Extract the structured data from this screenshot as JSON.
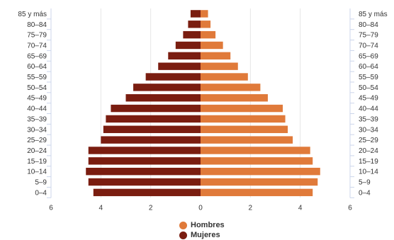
{
  "chart_data": {
    "type": "bar",
    "orientation": "horizontal",
    "layout": "population-pyramid",
    "categories": [
      "85 y más",
      "80–84",
      "75–79",
      "70–74",
      "65–69",
      "60–64",
      "55–59",
      "50–54",
      "45–49",
      "40–44",
      "35–39",
      "30–34",
      "25–29",
      "20–24",
      "15–19",
      "10–14",
      "5–9",
      "0–4"
    ],
    "series": [
      {
        "name": "Hombres",
        "side": "right",
        "color": "#E07A3A",
        "values": [
          0.3,
          0.4,
          0.6,
          0.9,
          1.2,
          1.5,
          1.9,
          2.4,
          2.7,
          3.3,
          3.4,
          3.5,
          3.7,
          4.4,
          4.5,
          4.8,
          4.7,
          4.5
        ]
      },
      {
        "name": "Mujeres",
        "side": "left",
        "color": "#7A1D10",
        "values": [
          0.4,
          0.5,
          0.7,
          1.0,
          1.3,
          1.7,
          2.2,
          2.7,
          3.0,
          3.6,
          3.8,
          3.9,
          4.0,
          4.5,
          4.5,
          4.6,
          4.5,
          4.3
        ]
      }
    ],
    "x_ticks": [
      "6",
      "4",
      "2",
      "0",
      "2",
      "4",
      "6"
    ],
    "xlim": [
      -6,
      6
    ],
    "grid": true,
    "legend_position": "bottom-center",
    "title": "",
    "xlabel": "",
    "ylabel": ""
  }
}
